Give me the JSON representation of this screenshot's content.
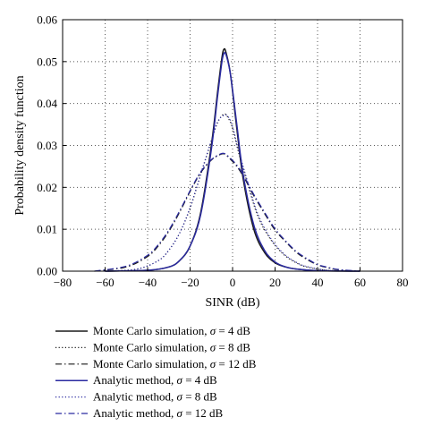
{
  "chart_data": {
    "type": "line",
    "title": "",
    "xlabel": "SINR (dB)",
    "ylabel": "Probability density function",
    "xlim": [
      -80,
      80
    ],
    "ylim": [
      0,
      0.06
    ],
    "xticks": [
      -80,
      -60,
      -40,
      -20,
      0,
      20,
      40,
      60,
      80
    ],
    "yticks": [
      0.0,
      0.01,
      0.02,
      0.03,
      0.04,
      0.05,
      0.06
    ],
    "xtick_labels": [
      "−80",
      "−60",
      "−40",
      "−20",
      "0",
      "20",
      "40",
      "60",
      "80"
    ],
    "ytick_labels": [
      "0.00",
      "0.01",
      "0.02",
      "0.03",
      "0.04",
      "0.05",
      "0.06"
    ],
    "grid": true,
    "legend_position": "below",
    "colors": {
      "black": "#1a1a1a",
      "blue": "#2a2aa0"
    },
    "series": [
      {
        "name_prefix": "Monte Carlo simulation, ",
        "name_value": " = 4 dB",
        "color": "#1a1a1a",
        "dash": "solid",
        "x": [
          -60,
          -40,
          -30,
          -25,
          -20,
          -15,
          -10,
          -7,
          -5,
          -4,
          -3,
          -1,
          2,
          5,
          10,
          15,
          20,
          25,
          30,
          40,
          60
        ],
        "y": [
          0,
          0.0002,
          0.001,
          0.0025,
          0.006,
          0.014,
          0.03,
          0.043,
          0.051,
          0.053,
          0.052,
          0.047,
          0.034,
          0.022,
          0.01,
          0.0045,
          0.002,
          0.001,
          0.0005,
          0.0001,
          0
        ]
      },
      {
        "name_prefix": "Monte Carlo simulation, ",
        "name_value": " = 8 dB",
        "color": "#1a1a1a",
        "dash": "dotted",
        "x": [
          -60,
          -45,
          -35,
          -30,
          -25,
          -20,
          -15,
          -10,
          -7,
          -4,
          -2,
          0,
          3,
          7,
          12,
          18,
          24,
          30,
          35,
          45,
          60
        ],
        "y": [
          0,
          0.0005,
          0.0025,
          0.005,
          0.009,
          0.015,
          0.023,
          0.031,
          0.0355,
          0.0375,
          0.0365,
          0.034,
          0.028,
          0.021,
          0.013,
          0.0075,
          0.004,
          0.002,
          0.001,
          0.0002,
          0
        ]
      },
      {
        "name_prefix": "Monte Carlo simulation, ",
        "name_value": " = 12 dB",
        "color": "#1a1a1a",
        "dash": "dashdot",
        "x": [
          -65,
          -50,
          -40,
          -35,
          -30,
          -25,
          -20,
          -15,
          -10,
          -6,
          -4,
          -2,
          2,
          6,
          10,
          15,
          20,
          25,
          30,
          35,
          40,
          45,
          50,
          60
        ],
        "y": [
          0,
          0.001,
          0.0035,
          0.006,
          0.0095,
          0.014,
          0.019,
          0.0235,
          0.0265,
          0.0278,
          0.028,
          0.0272,
          0.025,
          0.0218,
          0.018,
          0.0138,
          0.0098,
          0.007,
          0.0045,
          0.0028,
          0.0015,
          0.0008,
          0.0003,
          0
        ]
      },
      {
        "name_prefix": "Analytic method, ",
        "name_value": " = 4 dB",
        "color": "#2a2aa0",
        "dash": "solid",
        "x": [
          -60,
          -40,
          -30,
          -25,
          -20,
          -15,
          -10,
          -7,
          -5,
          -4,
          -3,
          -1,
          2,
          5,
          10,
          15,
          20,
          25,
          30,
          40,
          60
        ],
        "y": [
          0,
          0.0002,
          0.001,
          0.0025,
          0.006,
          0.0135,
          0.029,
          0.042,
          0.05,
          0.052,
          0.0515,
          0.047,
          0.035,
          0.023,
          0.011,
          0.005,
          0.0022,
          0.001,
          0.0005,
          0.0001,
          0
        ]
      },
      {
        "name_prefix": "Analytic method, ",
        "name_value": " = 8 dB",
        "color": "#2a2aa0",
        "dash": "dotted",
        "x": [
          -60,
          -45,
          -35,
          -30,
          -25,
          -20,
          -15,
          -10,
          -7,
          -4,
          -2,
          0,
          3,
          7,
          12,
          18,
          24,
          30,
          35,
          45,
          60
        ],
        "y": [
          0,
          0.0005,
          0.0025,
          0.005,
          0.009,
          0.0152,
          0.0232,
          0.0312,
          0.0357,
          0.0372,
          0.0368,
          0.0345,
          0.0285,
          0.0215,
          0.0135,
          0.0078,
          0.0042,
          0.0021,
          0.0011,
          0.0002,
          0
        ]
      },
      {
        "name_prefix": "Analytic method, ",
        "name_value": " = 12 dB",
        "color": "#2a2aa0",
        "dash": "dashdot",
        "x": [
          -65,
          -50,
          -40,
          -35,
          -30,
          -25,
          -20,
          -15,
          -10,
          -6,
          -4,
          -2,
          2,
          6,
          10,
          15,
          20,
          25,
          30,
          35,
          40,
          45,
          50,
          60
        ],
        "y": [
          0,
          0.0012,
          0.0038,
          0.0063,
          0.0098,
          0.0143,
          0.0192,
          0.0237,
          0.0266,
          0.0279,
          0.0281,
          0.0274,
          0.0253,
          0.0221,
          0.0183,
          0.0141,
          0.0101,
          0.0072,
          0.0047,
          0.003,
          0.0016,
          0.0009,
          0.0004,
          0
        ]
      }
    ]
  }
}
